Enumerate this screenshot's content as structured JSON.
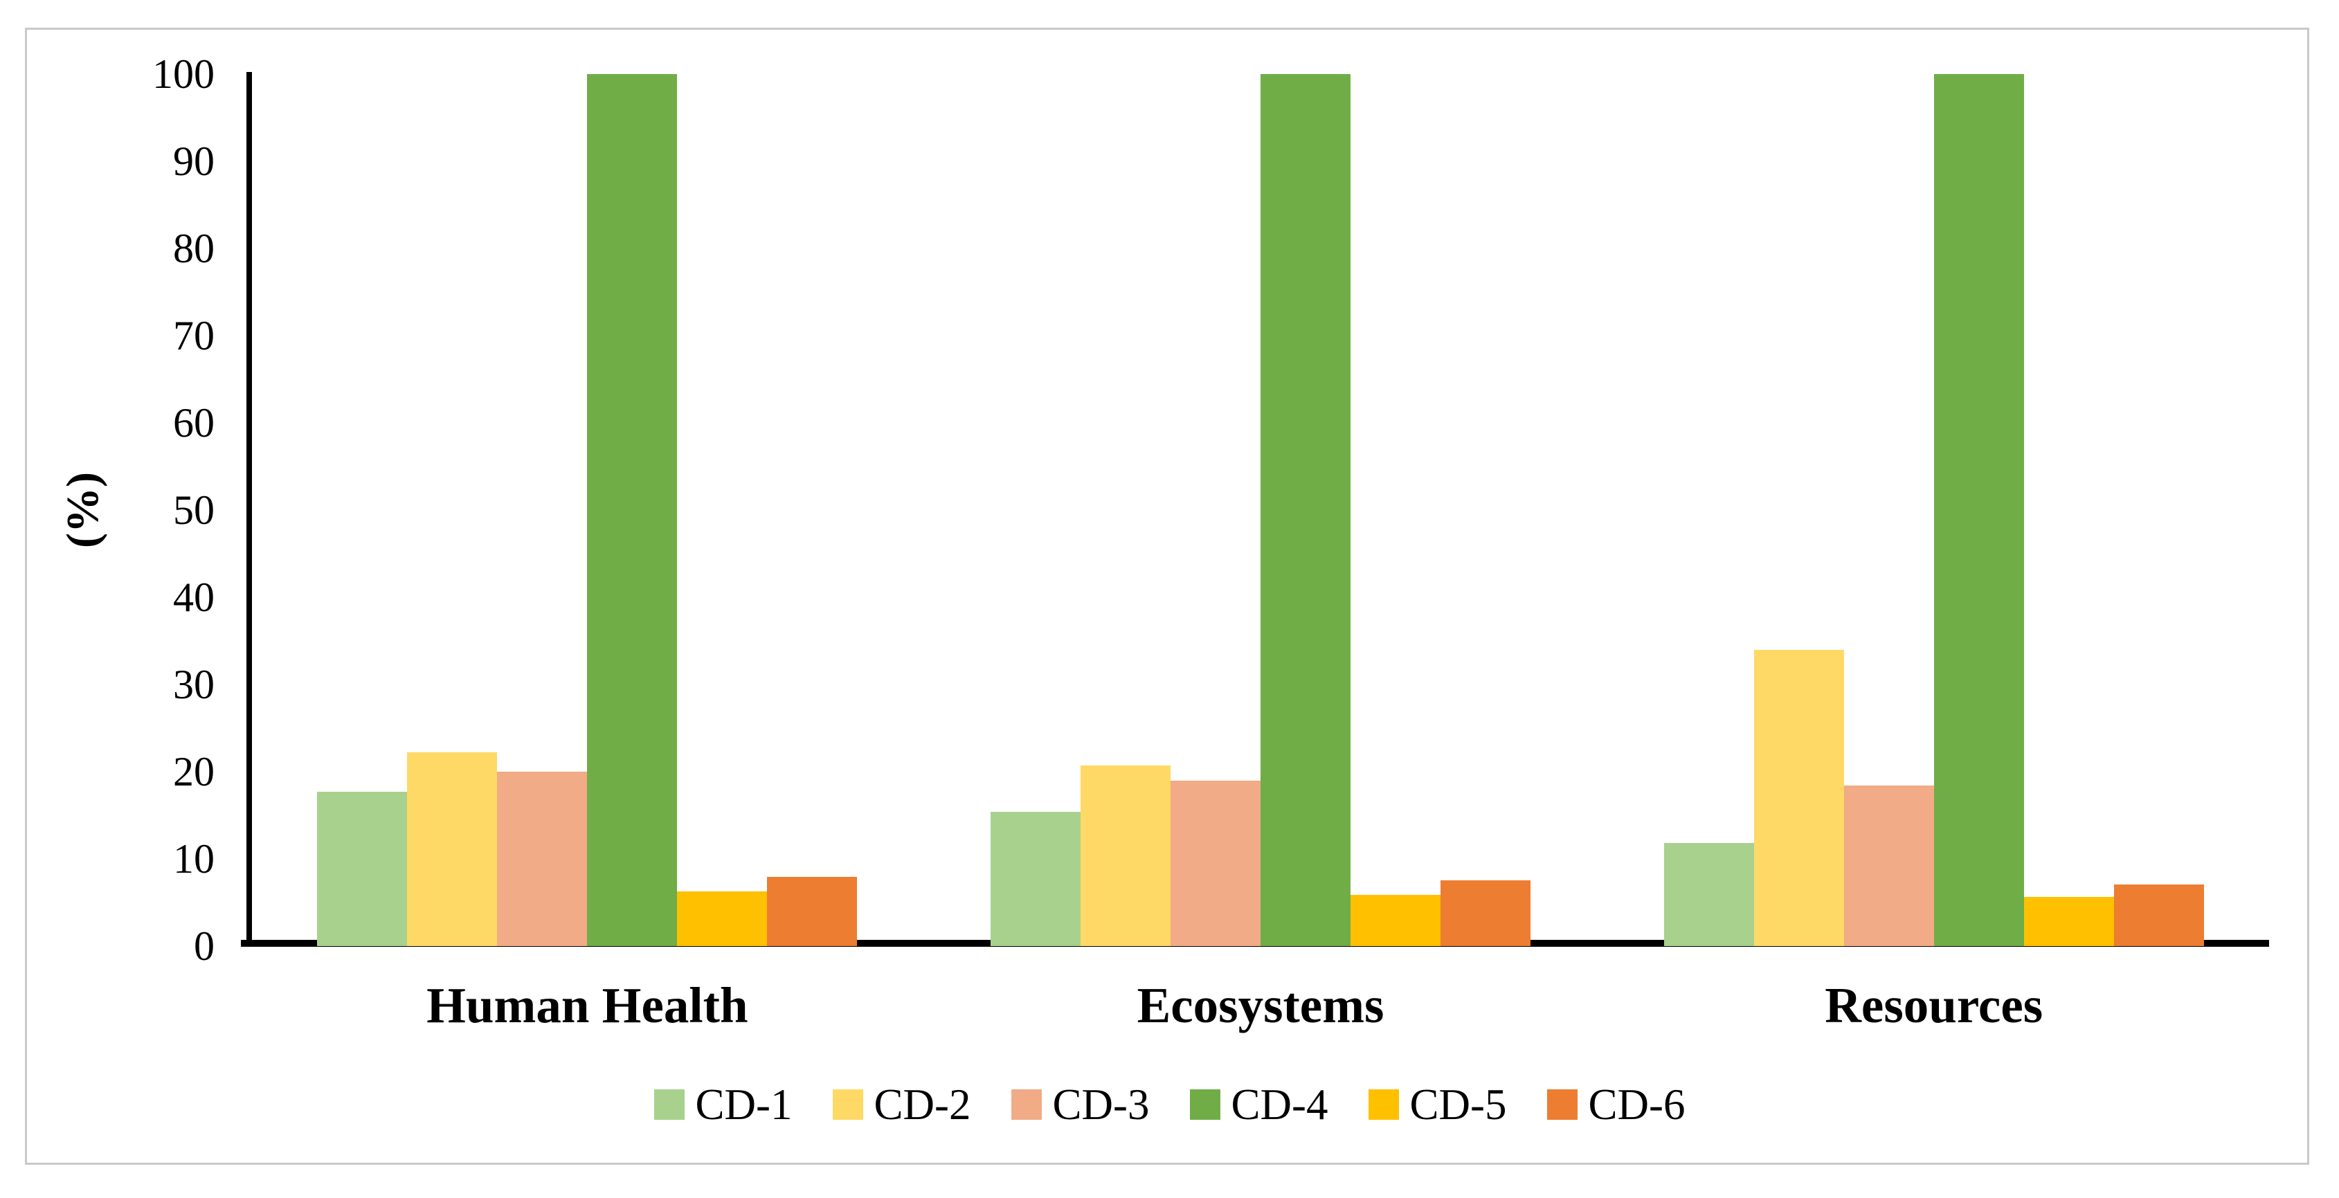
{
  "figure": {
    "background": "#ffffff",
    "frame_border_color": "#c9c9c9",
    "axis_color": "#000000"
  },
  "chart_data": {
    "type": "bar",
    "title": "",
    "xlabel": "",
    "ylabel": "(%)",
    "ylim": [
      0,
      100
    ],
    "y_ticks": [
      0,
      10,
      20,
      30,
      40,
      50,
      60,
      70,
      80,
      90,
      100
    ],
    "grid": false,
    "legend_position": "bottom",
    "categories": [
      "Human Health",
      "Ecosystems",
      "Resources"
    ],
    "series": [
      {
        "name": "CD-1",
        "color": "#a9d18e",
        "values": [
          17.7,
          15.4,
          11.8
        ]
      },
      {
        "name": "CD-2",
        "color": "#ffd966",
        "values": [
          22.2,
          20.7,
          34.0
        ]
      },
      {
        "name": "CD-3",
        "color": "#f1ab86",
        "values": [
          20.0,
          19.0,
          18.4
        ]
      },
      {
        "name": "CD-4",
        "color": "#70ad47",
        "values": [
          100,
          100,
          100
        ]
      },
      {
        "name": "CD-5",
        "color": "#ffc000",
        "values": [
          6.3,
          5.9,
          5.6
        ]
      },
      {
        "name": "CD-6",
        "color": "#ed7d31",
        "values": [
          7.9,
          7.5,
          7.1
        ]
      }
    ]
  }
}
